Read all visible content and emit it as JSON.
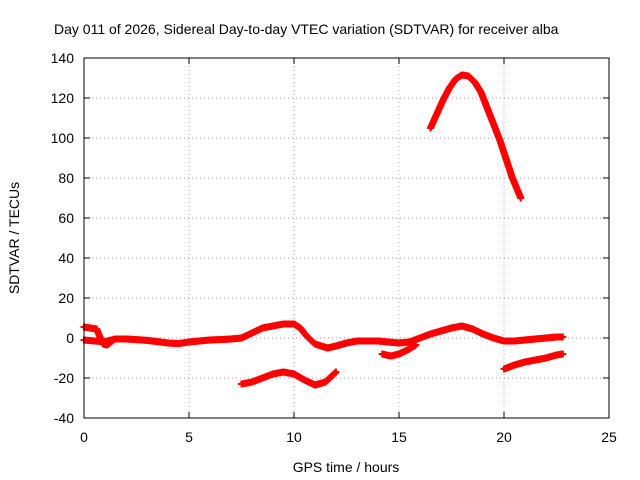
{
  "chart_data": {
    "type": "scatter",
    "title": "Day 011 of 2026, Sidereal Day-to-day VTEC variation (SDTVAR) for receiver alba",
    "xlabel": "GPS time / hours",
    "ylabel": "SDTVAR / TECUs",
    "xlim": [
      0,
      25
    ],
    "ylim": [
      -40,
      140
    ],
    "xticks": [
      0,
      5,
      10,
      15,
      20,
      25
    ],
    "yticks": [
      -40,
      -20,
      0,
      20,
      40,
      60,
      80,
      100,
      120,
      140
    ],
    "grid": true,
    "marker": "+",
    "color": "#ff0000",
    "series": [
      {
        "name": "track-main",
        "x": [
          0,
          0.5,
          1,
          1.5,
          2,
          2.5,
          3,
          3.5,
          4,
          4.5,
          5,
          5.5,
          6,
          6.5,
          7,
          7.5,
          8,
          8.5,
          9,
          9.5,
          10,
          10.3,
          10.6,
          11,
          11.3,
          11.6,
          12,
          12.5,
          13,
          13.5,
          14,
          14.5,
          15,
          15.5,
          16,
          16.5,
          17,
          17.5,
          18,
          18.5,
          19,
          19.5,
          20,
          20.5,
          21,
          21.5,
          22,
          22.5,
          22.8
        ],
        "y": [
          -1,
          -1.5,
          -1.8,
          -0.5,
          -0.5,
          -0.8,
          -1.2,
          -1.8,
          -2.5,
          -2.8,
          -2,
          -1.5,
          -1,
          -0.8,
          -0.5,
          0,
          2.5,
          5,
          6,
          7,
          7,
          5,
          1,
          -3,
          -4,
          -5,
          -4,
          -2.5,
          -1.5,
          -1.5,
          -1.5,
          -2,
          -2.5,
          -2,
          0,
          2,
          3.5,
          5,
          6,
          4.5,
          2,
          0,
          -1.5,
          -1.5,
          -1,
          -0.5,
          0,
          0.5,
          0.5
        ]
      },
      {
        "name": "track-early",
        "x": [
          0,
          0.3,
          0.6,
          0.9,
          1.1,
          1.4
        ],
        "y": [
          5.5,
          5,
          4.5,
          -3,
          -3.5,
          -1
        ]
      },
      {
        "name": "track-mid-low",
        "x": [
          14.2,
          14.6,
          15,
          15.4,
          15.8
        ],
        "y": [
          -8,
          -9,
          -8,
          -6,
          -3.5
        ]
      },
      {
        "name": "track-low",
        "x": [
          7.5,
          8,
          8.5,
          9,
          9.5,
          10,
          10.5,
          11,
          11.5,
          12
        ],
        "y": [
          -23,
          -22,
          -20,
          -18,
          -17,
          -18,
          -21,
          -23.5,
          -22,
          -17
        ]
      },
      {
        "name": "track-late-low",
        "x": [
          20,
          20.5,
          21,
          21.5,
          22,
          22.5,
          22.8
        ],
        "y": [
          -15.5,
          -13.5,
          -12,
          -11,
          -10,
          -8.5,
          -8
        ]
      },
      {
        "name": "track-high",
        "x": [
          16.5,
          16.8,
          17.1,
          17.4,
          17.7,
          18,
          18.3,
          18.6,
          18.9,
          19.2,
          19.5,
          19.8,
          20.1,
          20.4,
          20.8
        ],
        "y": [
          105,
          112,
          119,
          125,
          129.5,
          131.5,
          131,
          128,
          123,
          115,
          107,
          99,
          89.5,
          80,
          70
        ]
      }
    ]
  }
}
